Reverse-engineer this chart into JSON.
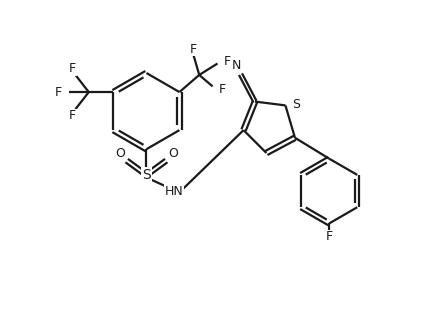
{
  "background_color": "#ffffff",
  "line_color": "#1a1a1a",
  "figsize": [
    4.3,
    3.25
  ],
  "dpi": 100,
  "bond_lw": 1.6,
  "font_size": 9.0,
  "xlim": [
    0,
    10
  ],
  "ylim": [
    0,
    8.5
  ]
}
